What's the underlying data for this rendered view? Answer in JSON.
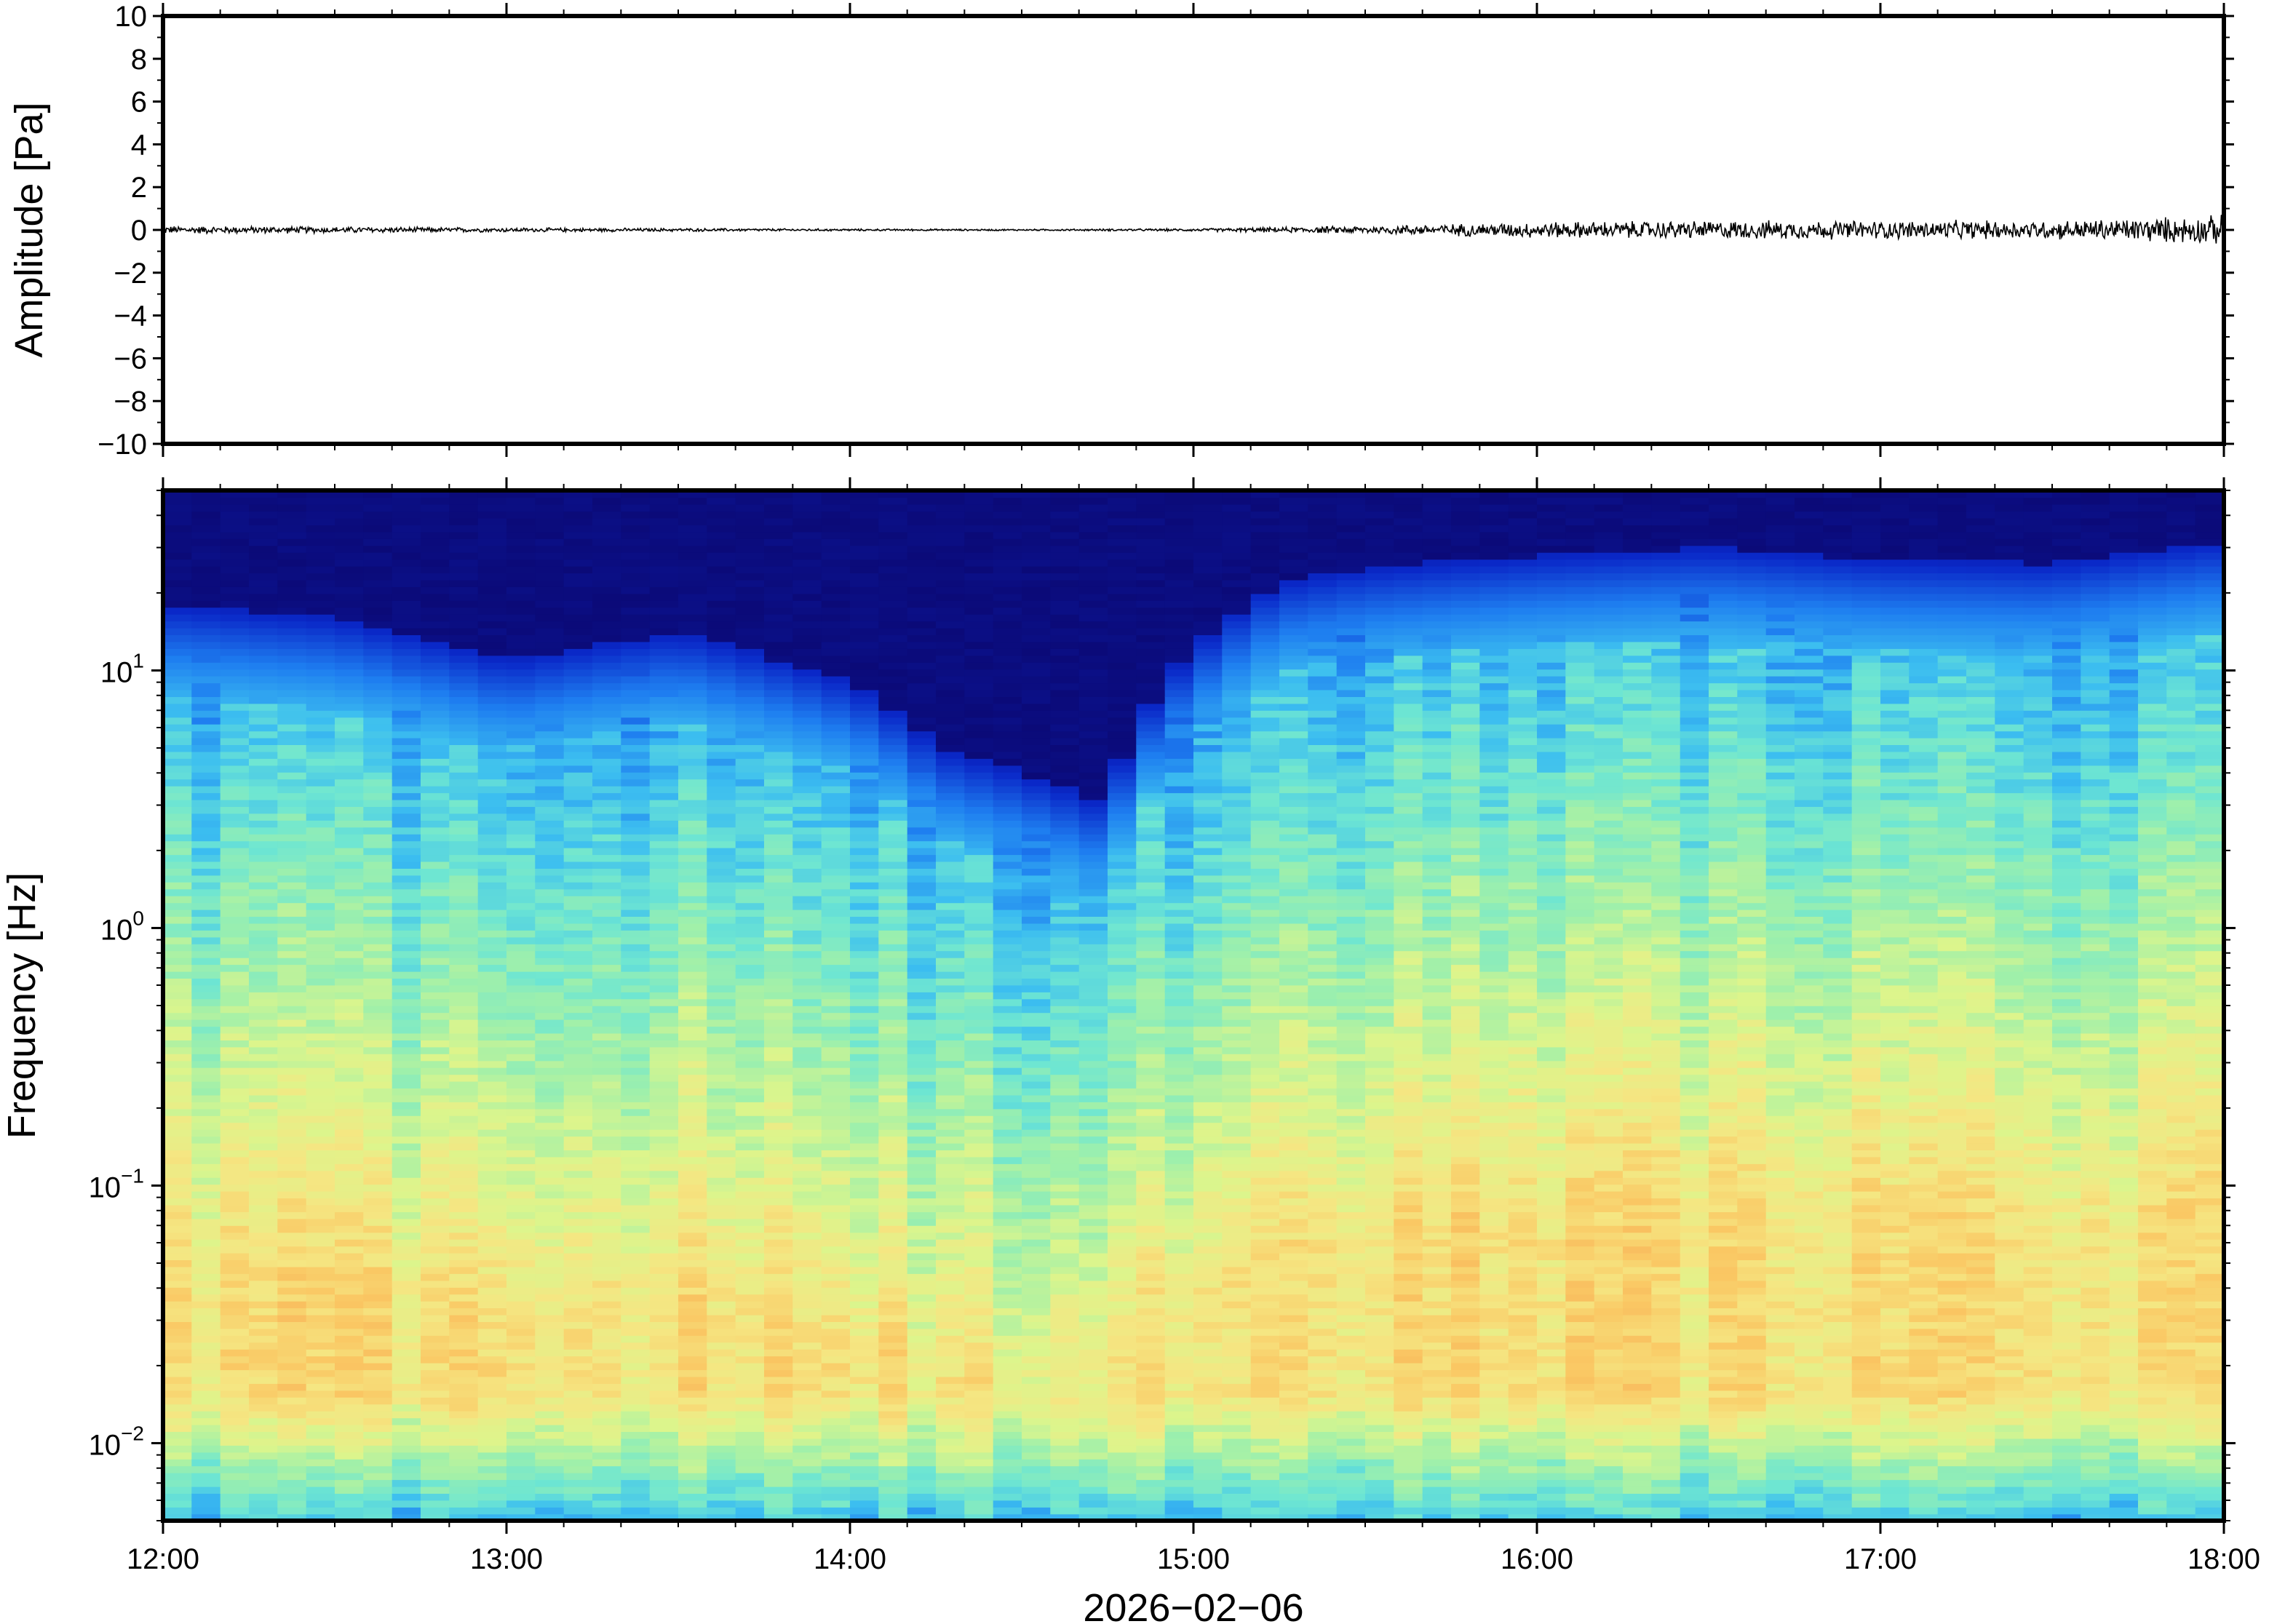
{
  "chart_data": [
    {
      "type": "line",
      "panel": "waveform",
      "ylabel": "Amplitude [Pa]",
      "ylim": [
        -10,
        10
      ],
      "yticks": [
        -10,
        -8,
        -6,
        -4,
        -2,
        0,
        2,
        4,
        6,
        8,
        10
      ],
      "ytick_labels": [
        "−10",
        "−8",
        "−6",
        "−4",
        "−2",
        "0",
        "2",
        "4",
        "6",
        "8",
        "10"
      ],
      "xlim": [
        "12:00",
        "18:00"
      ],
      "envelope": {
        "x": [
          "12:00",
          "12:30",
          "13:00",
          "13:30",
          "14:00",
          "14:30",
          "15:00",
          "15:30",
          "16:00",
          "16:30",
          "17:00",
          "17:30",
          "18:00"
        ],
        "y": [
          0.15,
          0.12,
          0.08,
          0.06,
          0.04,
          0.03,
          0.05,
          0.15,
          0.3,
          0.35,
          0.35,
          0.35,
          0.55
        ]
      },
      "grid": false
    },
    {
      "type": "heatmap",
      "panel": "spectrogram",
      "xlabel": "2026−02−06",
      "ylabel": "Frequency [Hz]",
      "yscale": "log",
      "ylim": [
        0.005,
        50
      ],
      "yticks": [
        0.01,
        0.1,
        1,
        10
      ],
      "ytick_labels": [
        {
          "base": "10",
          "exp": "−2"
        },
        {
          "base": "10",
          "exp": "−1"
        },
        {
          "base": "10",
          "exp": "0"
        },
        {
          "base": "10",
          "exp": "1"
        }
      ],
      "xticks": [
        "12:00",
        "13:00",
        "14:00",
        "15:00",
        "16:00",
        "17:00",
        "18:00"
      ],
      "xlim": [
        "12:00",
        "18:00"
      ],
      "colormap": [
        "#0b0a78",
        "#0a28c8",
        "#1e7ef0",
        "#3cbef0",
        "#6ee6d2",
        "#a0f0aa",
        "#dcf58c",
        "#f5e682",
        "#fac864",
        "#f5a050"
      ],
      "top_edge_hz": {
        "x": [
          "12:00",
          "12:30",
          "13:00",
          "13:30",
          "14:00",
          "14:15",
          "14:30",
          "14:45",
          "15:00",
          "15:15",
          "15:30",
          "16:00",
          "16:30",
          "17:00",
          "17:30",
          "18:00"
        ],
        "y": [
          18,
          16,
          11,
          14,
          9,
          5,
          4,
          3,
          12,
          22,
          25,
          28,
          30,
          27,
          26,
          32
        ]
      },
      "grid": false
    }
  ]
}
